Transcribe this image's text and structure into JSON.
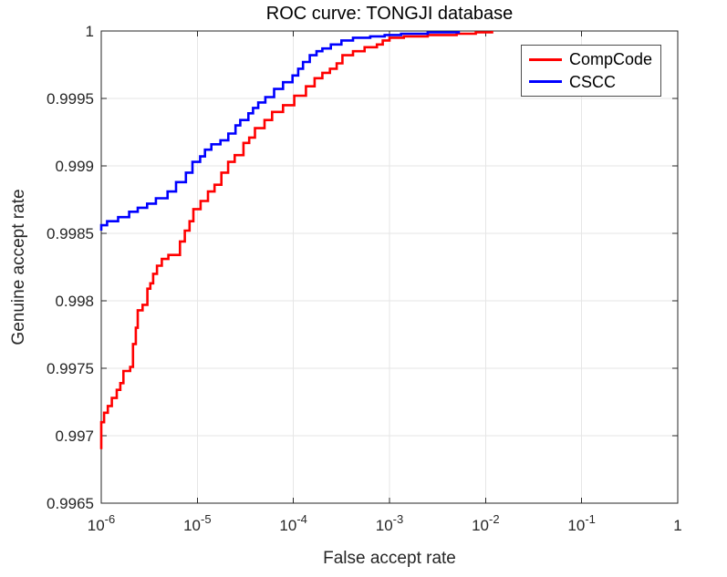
{
  "chart_data": {
    "type": "line",
    "title": "ROC curve: TONGJI database",
    "xlabel": "False accept rate",
    "ylabel": "Genuine accept rate",
    "x_scale": "log",
    "xlim": [
      1e-06,
      1
    ],
    "ylim": [
      0.9965,
      1
    ],
    "grid": true,
    "legend_position": "top-right",
    "x_ticks": [
      {
        "value": 1e-06,
        "base": "10",
        "exp": "-6"
      },
      {
        "value": 1e-05,
        "base": "10",
        "exp": "-5"
      },
      {
        "value": 0.0001,
        "base": "10",
        "exp": "-4"
      },
      {
        "value": 0.001,
        "base": "10",
        "exp": "-3"
      },
      {
        "value": 0.01,
        "base": "10",
        "exp": "-2"
      },
      {
        "value": 0.1,
        "base": "10",
        "exp": "-1"
      },
      {
        "value": 1,
        "label": "1"
      }
    ],
    "y_ticks": [
      {
        "value": 0.9965,
        "label": "0.9965"
      },
      {
        "value": 0.997,
        "label": "0.997"
      },
      {
        "value": 0.9975,
        "label": "0.9975"
      },
      {
        "value": 0.998,
        "label": "0.998"
      },
      {
        "value": 0.9985,
        "label": "0.9985"
      },
      {
        "value": 0.999,
        "label": "0.999"
      },
      {
        "value": 0.9995,
        "label": "0.9995"
      },
      {
        "value": 1,
        "label": "1"
      }
    ],
    "colors": {
      "grid": "#e6e6e6",
      "axis": "#262626",
      "text": "#262626"
    },
    "series": [
      {
        "name": "CompCode",
        "color": "#ff0000",
        "step": true,
        "points": [
          [
            1e-06,
            0.9969
          ],
          [
            1e-06,
            0.9971
          ],
          [
            1.07e-06,
            0.99717
          ],
          [
            1.17e-06,
            0.99722
          ],
          [
            1.29e-06,
            0.99728
          ],
          [
            1.45e-06,
            0.99734
          ],
          [
            1.58e-06,
            0.99739
          ],
          [
            1.7e-06,
            0.99748
          ],
          [
            2e-06,
            0.99751
          ],
          [
            2.14e-06,
            0.99768
          ],
          [
            2.29e-06,
            0.9978
          ],
          [
            2.4e-06,
            0.99793
          ],
          [
            2.69e-06,
            0.99797
          ],
          [
            3.02e-06,
            0.99809
          ],
          [
            3.24e-06,
            0.99813
          ],
          [
            3.47e-06,
            0.9982
          ],
          [
            3.8e-06,
            0.99826
          ],
          [
            4.27e-06,
            0.99831
          ],
          [
            5e-06,
            0.99834
          ],
          [
            6.6e-06,
            0.99844
          ],
          [
            7.4e-06,
            0.99852
          ],
          [
            8.3e-06,
            0.99859
          ],
          [
            9.1e-06,
            0.99868
          ],
          [
            1.08e-05,
            0.99874
          ],
          [
            1.29e-05,
            0.99881
          ],
          [
            1.51e-05,
            0.99886
          ],
          [
            1.78e-05,
            0.99895
          ],
          [
            2.09e-05,
            0.99903
          ],
          [
            2.45e-05,
            0.99908
          ],
          [
            3.02e-05,
            0.99917
          ],
          [
            3.47e-05,
            0.99921
          ],
          [
            3.98e-05,
            0.99928
          ],
          [
            5e-05,
            0.99934
          ],
          [
            6e-05,
            0.9994
          ],
          [
            7.8e-05,
            0.99945
          ],
          [
            0.000102,
            0.99952
          ],
          [
            0.000135,
            0.99959
          ],
          [
            0.000166,
            0.99965
          ],
          [
            0.0002,
            0.99969
          ],
          [
            0.00024,
            0.99972
          ],
          [
            0.000282,
            0.99976
          ],
          [
            0.000324,
            0.99982
          ],
          [
            0.000417,
            0.99985
          ],
          [
            0.00055,
            0.99988
          ],
          [
            0.00074,
            0.9999
          ],
          [
            0.00085,
            0.99993
          ],
          [
            0.001,
            0.99995
          ],
          [
            0.00141,
            0.99996
          ],
          [
            0.0025,
            0.99997
          ],
          [
            0.005,
            0.99998
          ],
          [
            0.0079,
            0.99999
          ],
          [
            0.0117,
            1.0
          ]
        ]
      },
      {
        "name": "CSCC",
        "color": "#0000ff",
        "step": true,
        "points": [
          [
            1e-06,
            0.99852
          ],
          [
            1e-06,
            0.99856
          ],
          [
            1.15e-06,
            0.99859
          ],
          [
            1.5e-06,
            0.99862
          ],
          [
            1.95e-06,
            0.99866
          ],
          [
            2.4e-06,
            0.99869
          ],
          [
            3e-06,
            0.99872
          ],
          [
            3.7e-06,
            0.99876
          ],
          [
            4.9e-06,
            0.99881
          ],
          [
            6e-06,
            0.99888
          ],
          [
            7.6e-06,
            0.99895
          ],
          [
            8.9e-06,
            0.99903
          ],
          [
            1.07e-05,
            0.99907
          ],
          [
            1.2e-05,
            0.99912
          ],
          [
            1.4e-05,
            0.99916
          ],
          [
            1.74e-05,
            0.99919
          ],
          [
            2.1e-05,
            0.99924
          ],
          [
            2.5e-05,
            0.9993
          ],
          [
            2.8e-05,
            0.99934
          ],
          [
            3.4e-05,
            0.99939
          ],
          [
            3.8e-05,
            0.99943
          ],
          [
            4.3e-05,
            0.99947
          ],
          [
            5.1e-05,
            0.99951
          ],
          [
            6.3e-05,
            0.99957
          ],
          [
            7.8e-05,
            0.99962
          ],
          [
            9.8e-05,
            0.99967
          ],
          [
            0.000112,
            0.99972
          ],
          [
            0.000126,
            0.99977
          ],
          [
            0.000148,
            0.99982
          ],
          [
            0.000174,
            0.99985
          ],
          [
            0.0002,
            0.99987
          ],
          [
            0.000245,
            0.9999
          ],
          [
            0.000316,
            0.99993
          ],
          [
            0.000417,
            0.99995
          ],
          [
            0.00063,
            0.99996
          ],
          [
            0.00089,
            0.99997
          ],
          [
            0.00132,
            0.99998
          ],
          [
            0.0025,
            0.99999
          ],
          [
            0.00525,
            1.0
          ]
        ]
      }
    ]
  }
}
